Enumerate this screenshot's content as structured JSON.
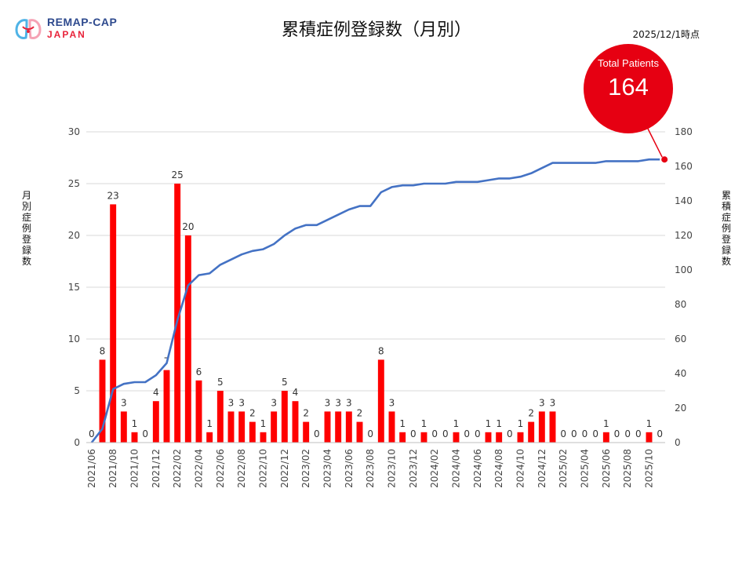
{
  "header": {
    "logo_name": "REMAP-CAP",
    "logo_sub": "JAPAN",
    "title": "累積症例登録数（月別）",
    "as_of": "2025/12/1時点"
  },
  "callout": {
    "label": "Total Patients",
    "value": "164"
  },
  "colors": {
    "bar": "#ff0000",
    "line": "#4472c4",
    "grid": "#d9d9d9",
    "callout": "#e60012"
  },
  "chart_data": {
    "type": "bar",
    "title": "累積症例登録数（月別）",
    "ylabel": "月別症例登録数",
    "y2label": "累積症例登録数",
    "ylim": [
      0,
      30
    ],
    "y2lim": [
      0,
      180
    ],
    "yticks": [
      0,
      5,
      10,
      15,
      20,
      25,
      30
    ],
    "y2ticks": [
      0,
      20,
      40,
      60,
      80,
      100,
      120,
      140,
      160,
      180
    ],
    "tick_labels": [
      "2021/06",
      "2021/08",
      "2021/10",
      "2021/12",
      "2022/02",
      "2022/04",
      "2022/06",
      "2022/08",
      "2022/10",
      "2022/12",
      "2023/02",
      "2023/04",
      "2023/06",
      "2023/08",
      "2023/10",
      "2023/12",
      "2024/02",
      "2024/04",
      "2024/06",
      "2024/08",
      "2024/10",
      "2024/12",
      "2025/02",
      "2025/04",
      "2025/06",
      "2025/08",
      "2025/10"
    ],
    "categories": [
      "2021/06",
      "2021/07",
      "2021/08",
      "2021/09",
      "2021/10",
      "2021/11",
      "2021/12",
      "2022/01",
      "2022/02",
      "2022/03",
      "2022/04",
      "2022/05",
      "2022/06",
      "2022/07",
      "2022/08",
      "2022/09",
      "2022/10",
      "2022/11",
      "2022/12",
      "2023/01",
      "2023/02",
      "2023/03",
      "2023/04",
      "2023/05",
      "2023/06",
      "2023/07",
      "2023/08",
      "2023/09",
      "2023/10",
      "2023/11",
      "2023/12",
      "2024/01",
      "2024/02",
      "2024/03",
      "2024/04",
      "2024/05",
      "2024/06",
      "2024/07",
      "2024/08",
      "2024/09",
      "2024/10",
      "2024/11",
      "2024/12",
      "2025/01",
      "2025/02",
      "2025/03",
      "2025/04",
      "2025/05",
      "2025/06",
      "2025/07",
      "2025/08",
      "2025/09",
      "2025/10",
      "2025/11"
    ],
    "series": [
      {
        "name": "月別症例登録数",
        "type": "bar",
        "axis": "left",
        "values": [
          0,
          8,
          23,
          3,
          1,
          0,
          4,
          7,
          25,
          20,
          6,
          1,
          5,
          3,
          3,
          2,
          1,
          3,
          5,
          4,
          2,
          0,
          3,
          3,
          3,
          2,
          0,
          8,
          3,
          1,
          0,
          1,
          0,
          0,
          1,
          0,
          0,
          1,
          1,
          0,
          1,
          2,
          3,
          3,
          0,
          0,
          0,
          0,
          1,
          0,
          0,
          0,
          1,
          0
        ]
      },
      {
        "name": "累積症例登録数",
        "type": "line",
        "axis": "right",
        "values": [
          0,
          8,
          31,
          34,
          35,
          35,
          39,
          46,
          71,
          91,
          97,
          98,
          103,
          106,
          109,
          111,
          112,
          115,
          120,
          124,
          126,
          126,
          129,
          132,
          135,
          137,
          137,
          145,
          148,
          149,
          149,
          150,
          150,
          150,
          151,
          151,
          151,
          152,
          153,
          153,
          154,
          156,
          159,
          162,
          162,
          162,
          162,
          162,
          163,
          163,
          163,
          163,
          164,
          164
        ]
      }
    ],
    "grid": true
  }
}
